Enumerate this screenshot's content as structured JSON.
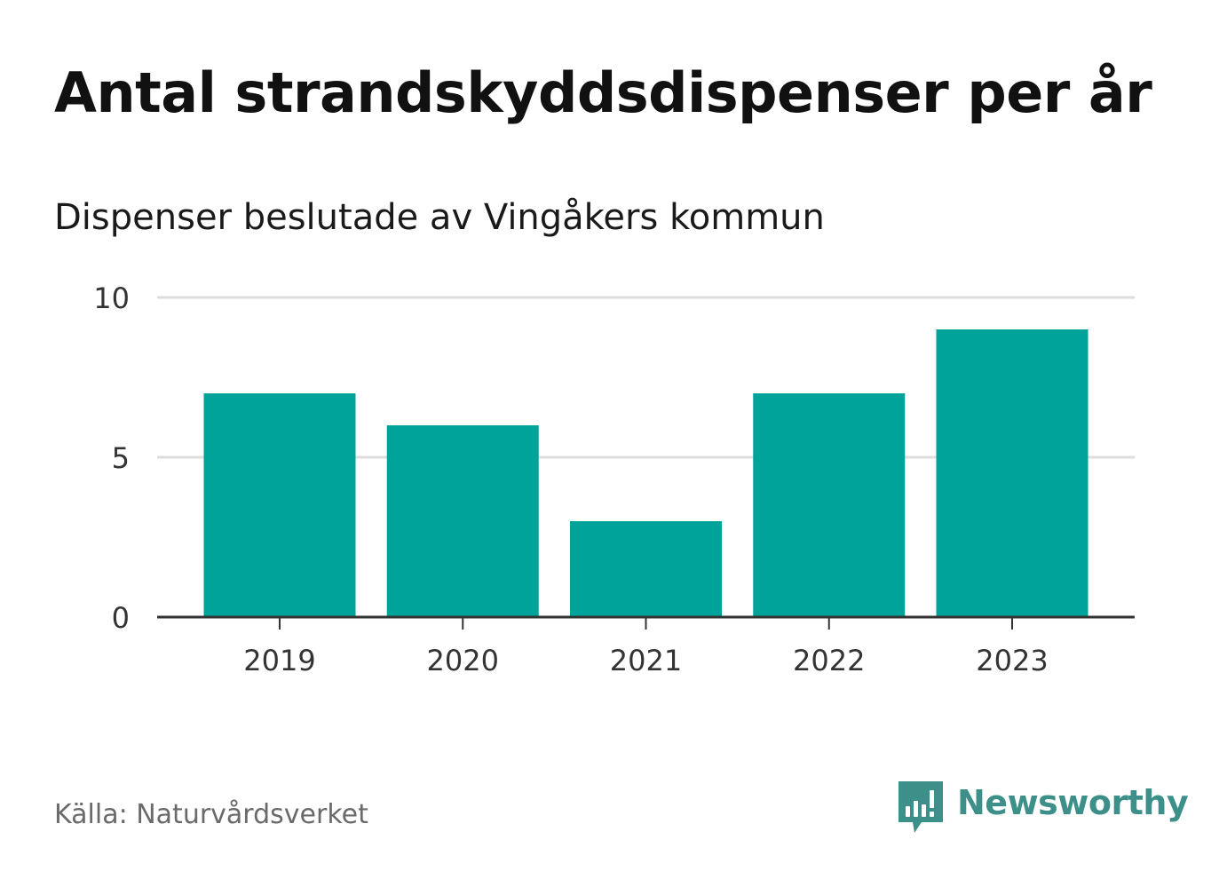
{
  "header": {
    "title": "Antal strandskyddsdispenser per år",
    "subtitle": "Dispenser beslutade av Vingåkers kommun"
  },
  "footer": {
    "source": "Källa: Naturvårdsverket",
    "brand": "Newsworthy",
    "brand_icon": "newsworthy-logo-icon"
  },
  "colors": {
    "bar": "#00a39a",
    "gridline": "#dddddd",
    "axis": "#333333",
    "brand": "#3d8f8a"
  },
  "chart_data": {
    "type": "bar",
    "title": "Antal strandskyddsdispenser per år",
    "subtitle": "Dispenser beslutade av Vingåkers kommun",
    "xlabel": "",
    "ylabel": "",
    "categories": [
      "2019",
      "2020",
      "2021",
      "2022",
      "2023"
    ],
    "values": [
      7,
      6,
      3,
      7,
      9
    ],
    "ylim": [
      0,
      10
    ],
    "yticks": [
      0,
      5,
      10
    ],
    "grid": true,
    "legend": "none"
  }
}
